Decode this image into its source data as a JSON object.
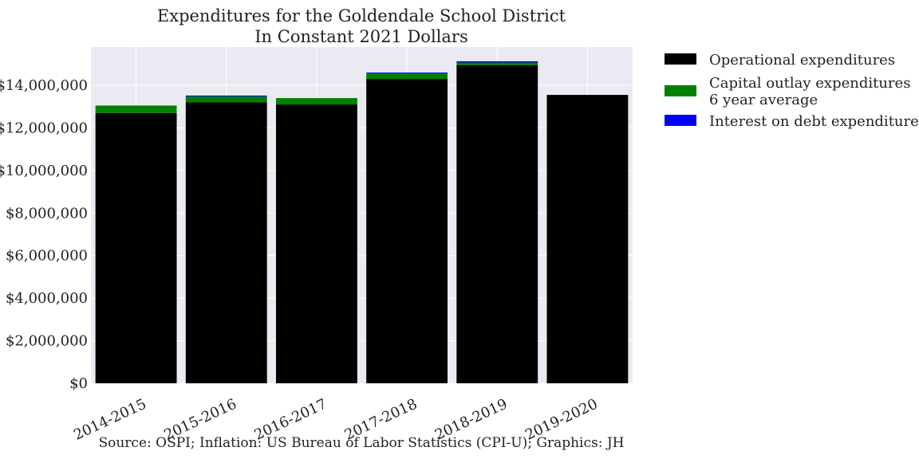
{
  "chart_data": {
    "type": "bar",
    "stacked": true,
    "title": [
      "Expenditures for the Goldendale School District",
      "In Constant 2021 Dollars"
    ],
    "xlabel": "",
    "ylabel": "",
    "categories": [
      "2014-2015",
      "2015-2016",
      "2016-2017",
      "2017-2018",
      "2018-2019",
      "2019-2020"
    ],
    "series": [
      {
        "name": "Operational expenditures",
        "color": "#000000",
        "values": [
          12700000,
          13200000,
          13100000,
          14300000,
          14950000,
          13550000
        ]
      },
      {
        "name": "Capital outlay expenditures\n6 year average",
        "color": "#008000",
        "values": [
          350000,
          280000,
          300000,
          260000,
          120000,
          0
        ]
      },
      {
        "name": "Interest on debt expenditures",
        "color": "#0000ff",
        "values": [
          0,
          40000,
          0,
          40000,
          60000,
          0
        ]
      }
    ],
    "ylim": [
      0,
      15800000
    ],
    "yticks": [
      0,
      2000000,
      4000000,
      6000000,
      8000000,
      10000000,
      12000000,
      14000000
    ],
    "ytick_labels": [
      "$0",
      "$2,000,000",
      "$4,000,000",
      "$6,000,000",
      "$8,000,000",
      "$10,000,000",
      "$12,000,000",
      "$14,000,000"
    ],
    "grid": true,
    "legend_position": "outside-right-top",
    "source": "Source: OSPI; Inflation: US Bureau of Labor Statistics (CPI-U); Graphics: JH",
    "colors": {
      "plot_background": "#eaeaf2",
      "grid": "#ffffff"
    }
  }
}
